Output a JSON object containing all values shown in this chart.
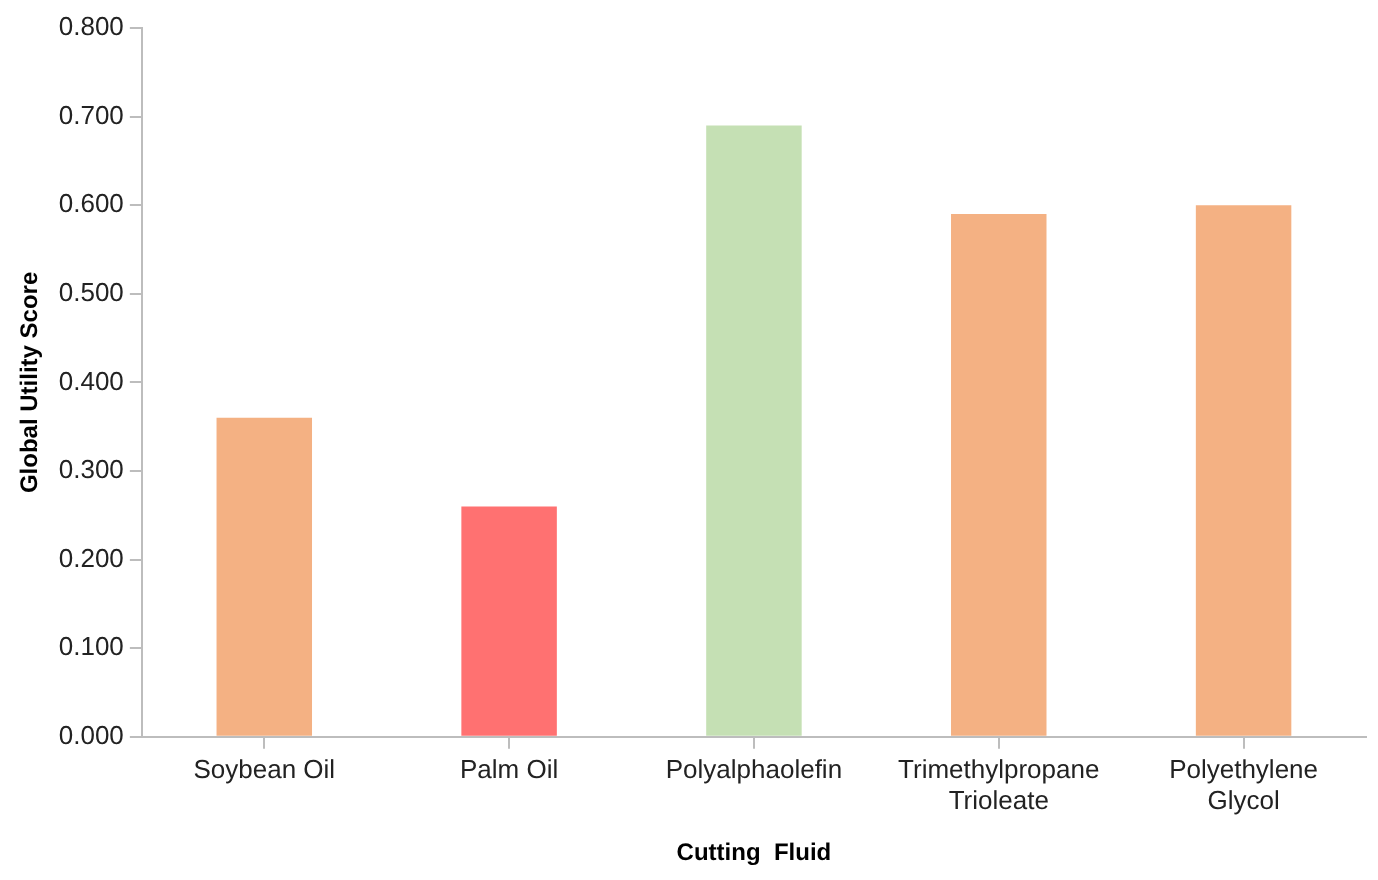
{
  "chart_data": {
    "type": "bar",
    "xlabel": "Cutting  Fluid",
    "ylabel": "Global Utility Score",
    "categories": [
      "Soybean Oil",
      "Palm Oil",
      "Polyalphaolefin",
      "Trimethylpropane\nTrioleate",
      "Polyethylene\nGlycol"
    ],
    "values": [
      0.36,
      0.26,
      0.69,
      0.59,
      0.6
    ],
    "colors": [
      "#f4b183",
      "#ff7171",
      "#c5e0b4",
      "#f4b183",
      "#f4b183"
    ],
    "ylim": [
      0,
      0.8
    ],
    "yticks": [
      {
        "value": 0,
        "label": "0.000"
      },
      {
        "value": 0.1,
        "label": "0.100"
      },
      {
        "value": 0.2,
        "label": "0.200"
      },
      {
        "value": 0.3,
        "label": "0.300"
      },
      {
        "value": 0.4,
        "label": "0.400"
      },
      {
        "value": 0.5,
        "label": "0.500"
      },
      {
        "value": 0.6,
        "label": "0.600"
      },
      {
        "value": 0.7,
        "label": "0.700"
      },
      {
        "value": 0.8,
        "label": "0.800"
      }
    ],
    "grid": false,
    "legend": false
  }
}
